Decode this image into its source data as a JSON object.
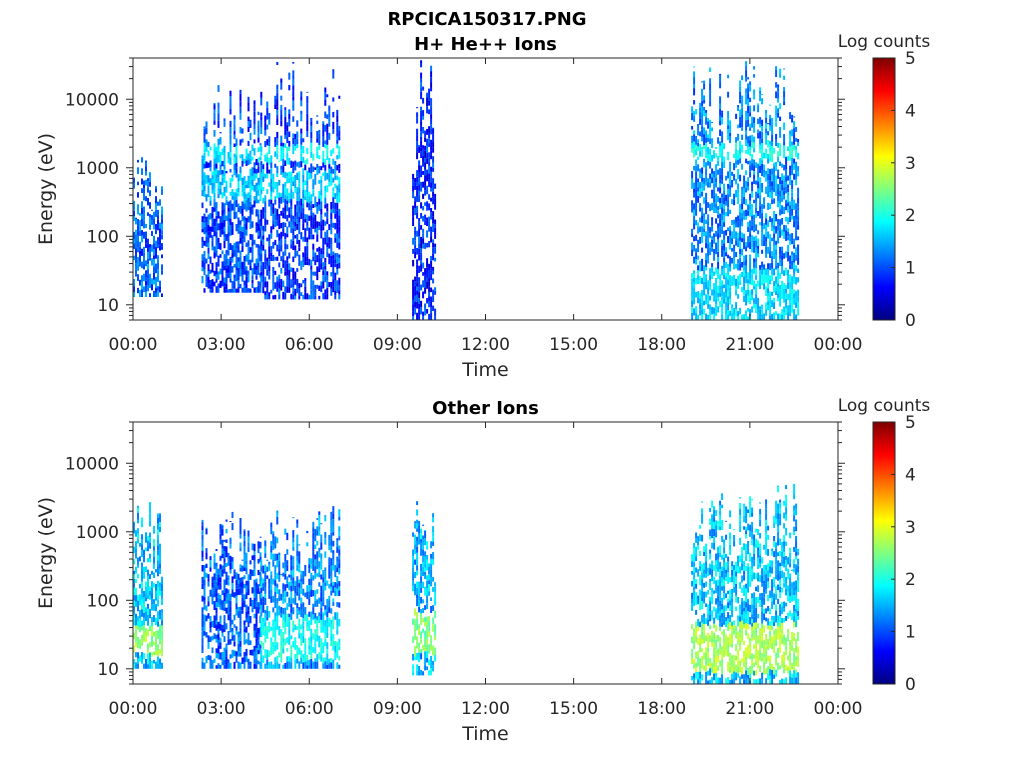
{
  "figure_title": "RPCICA150317.PNG",
  "colors": {
    "colormap": [
      "#00007f",
      "#0000ff",
      "#007fff",
      "#00ffff",
      "#7fff7f",
      "#ffff00",
      "#ff7f00",
      "#ff0000",
      "#7f0000"
    ],
    "axis": "#262626",
    "title": "#000000"
  },
  "chart_data": [
    {
      "type": "heatmap",
      "title": "H+ He++ Ions",
      "xlabel": "Time",
      "ylabel": "Energy (eV)",
      "yscale": "log",
      "xlim": [
        "00:00",
        "24:00"
      ],
      "ylim": [
        6,
        40000
      ],
      "x_ticks": [
        "00:00",
        "03:00",
        "06:00",
        "09:00",
        "12:00",
        "15:00",
        "18:00",
        "21:00",
        "00:00"
      ],
      "y_ticks": [
        "10",
        "100",
        "1000",
        "10000"
      ],
      "colorbar": {
        "label": "Log counts",
        "range": [
          0,
          5
        ],
        "ticks": [
          "0",
          "1",
          "2",
          "3",
          "4",
          "5"
        ]
      },
      "data_intervals": [
        {
          "start": "00:00",
          "end": "01:00",
          "emin": 13,
          "emax": 1500,
          "level": 1.1
        },
        {
          "start": "02:20",
          "end": "04:20",
          "emin": 15,
          "emax": 20000,
          "level": 1.0
        },
        {
          "start": "04:20",
          "end": "07:00",
          "emin": 12,
          "emax": 35000,
          "level": 0.9
        },
        {
          "start": "09:30",
          "end": "10:15",
          "emin": 6,
          "emax": 40000,
          "level": 0.8
        },
        {
          "start": "19:00",
          "end": "22:40",
          "emin": 6,
          "emax": 40000,
          "level": 1.3
        }
      ],
      "bands": [
        {
          "start": "02:20",
          "end": "07:00",
          "emin": 1100,
          "emax": 2000,
          "level": 1.8
        },
        {
          "start": "02:20",
          "end": "07:00",
          "emin": 300,
          "emax": 800,
          "level": 1.6
        },
        {
          "start": "19:00",
          "end": "22:40",
          "emin": 1200,
          "emax": 2000,
          "level": 1.9
        },
        {
          "start": "19:00",
          "end": "22:40",
          "emin": 6,
          "emax": 30,
          "level": 1.7
        }
      ]
    },
    {
      "type": "heatmap",
      "title": "Other Ions",
      "xlabel": "Time",
      "ylabel": "Energy (eV)",
      "yscale": "log",
      "xlim": [
        "00:00",
        "24:00"
      ],
      "ylim": [
        6,
        40000
      ],
      "x_ticks": [
        "00:00",
        "03:00",
        "06:00",
        "09:00",
        "12:00",
        "15:00",
        "18:00",
        "21:00",
        "00:00"
      ],
      "y_ticks": [
        "10",
        "100",
        "1000",
        "10000"
      ],
      "colorbar": {
        "label": "Log counts",
        "range": [
          0,
          5
        ],
        "ticks": [
          "0",
          "1",
          "2",
          "3",
          "4",
          "5"
        ]
      },
      "data_intervals": [
        {
          "start": "00:00",
          "end": "01:00",
          "emin": 10,
          "emax": 3000,
          "level": 1.6
        },
        {
          "start": "02:20",
          "end": "04:20",
          "emin": 10,
          "emax": 3000,
          "level": 1.1
        },
        {
          "start": "04:20",
          "end": "07:00",
          "emin": 10,
          "emax": 3000,
          "level": 1.3
        },
        {
          "start": "09:30",
          "end": "10:15",
          "emin": 8,
          "emax": 3000,
          "level": 1.5
        },
        {
          "start": "19:00",
          "end": "22:40",
          "emin": 6,
          "emax": 5000,
          "level": 1.6
        }
      ],
      "bands": [
        {
          "start": "00:00",
          "end": "01:00",
          "emin": 15,
          "emax": 40,
          "level": 2.6
        },
        {
          "start": "04:20",
          "end": "07:00",
          "emin": 12,
          "emax": 50,
          "level": 1.9
        },
        {
          "start": "09:30",
          "end": "10:15",
          "emin": 15,
          "emax": 60,
          "level": 2.5
        },
        {
          "start": "19:00",
          "end": "22:40",
          "emin": 8,
          "emax": 40,
          "level": 2.7
        }
      ]
    }
  ]
}
